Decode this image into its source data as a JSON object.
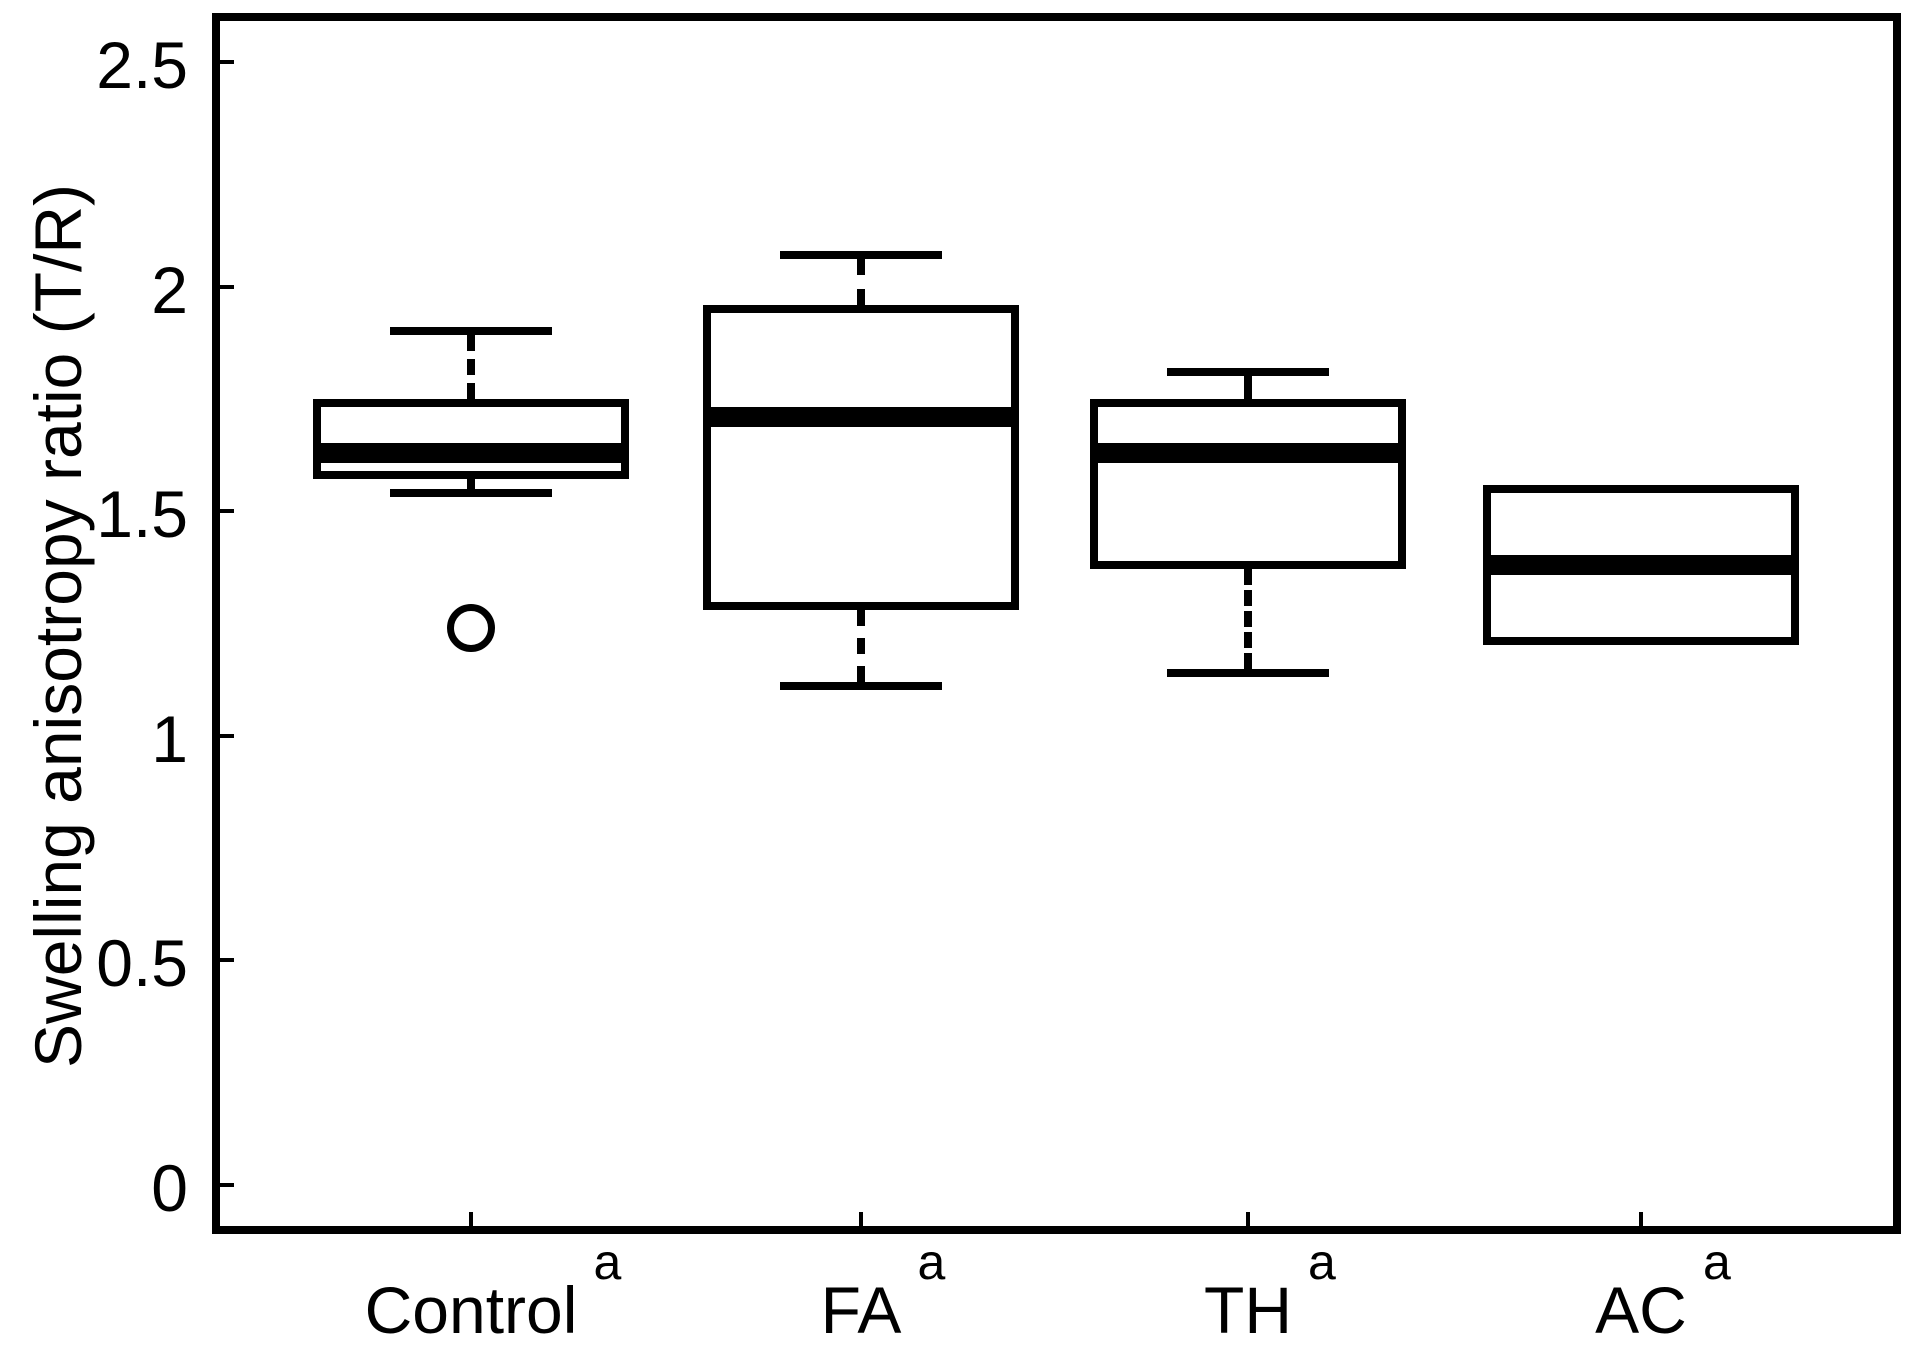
{
  "chart_data": {
    "type": "box",
    "title": "",
    "xlabel": "",
    "ylabel": "Swelling anisotropy ratio (T/R)",
    "ylim": [
      -0.1,
      2.6
    ],
    "grid": false,
    "legend": null,
    "yticks": [
      {
        "value": 0,
        "label": "0"
      },
      {
        "value": 0.5,
        "label": "0.5"
      },
      {
        "value": 1,
        "label": "1"
      },
      {
        "value": 1.5,
        "label": "1.5"
      },
      {
        "value": 2,
        "label": "2"
      },
      {
        "value": 2.5,
        "label": "2.5"
      }
    ],
    "categories": [
      {
        "label": "Control",
        "superscript": "a",
        "stats": {
          "whisker_low": 1.54,
          "q1": 1.58,
          "median": 1.63,
          "q3": 1.74,
          "whisker_high": 1.9
        },
        "outliers": [
          1.24
        ]
      },
      {
        "label": "FA",
        "superscript": "a",
        "stats": {
          "whisker_low": 1.11,
          "q1": 1.29,
          "median": 1.71,
          "q3": 1.95,
          "whisker_high": 2.07
        },
        "outliers": []
      },
      {
        "label": "TH",
        "superscript": "a",
        "stats": {
          "whisker_low": 1.14,
          "q1": 1.38,
          "median": 1.63,
          "q3": 1.74,
          "whisker_high": 1.81
        },
        "outliers": []
      },
      {
        "label": "AC",
        "superscript": "a",
        "stats": {
          "whisker_low": null,
          "q1": 1.21,
          "median": 1.38,
          "q3": 1.55,
          "whisker_high": null
        },
        "outliers": []
      }
    ],
    "colors": {
      "stroke": "#000000",
      "fill": "#ffffff"
    }
  }
}
